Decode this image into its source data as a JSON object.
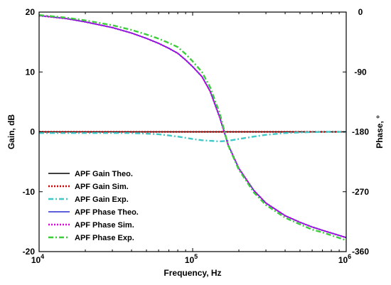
{
  "chart_data": {
    "type": "line",
    "xlabel": "Frequency, Hz",
    "ylabel_left": "Gain, dB",
    "ylabel_right": "Phase, °",
    "x_scale": "log",
    "xlim": [
      10000,
      1000000
    ],
    "ylim_left": [
      -20,
      20
    ],
    "ylim_right": [
      -360,
      0
    ],
    "x_ticks": [
      {
        "value": 10000,
        "base": "10",
        "exp": "4"
      },
      {
        "value": 100000,
        "base": "10",
        "exp": "5"
      },
      {
        "value": 1000000,
        "base": "10",
        "exp": "6"
      }
    ],
    "y_ticks_left": [
      "20",
      "10",
      "0",
      "-10",
      "-20"
    ],
    "y_ticks_right": [
      "0",
      "-90",
      "-180",
      "-270",
      "-360"
    ],
    "grid": false,
    "legend_position": "bottom-left",
    "x": [
      10000,
      15000,
      20000,
      30000,
      40000,
      50000,
      60000,
      70000,
      80000,
      90000,
      100000,
      115000,
      130000,
      150000,
      170000,
      200000,
      250000,
      300000,
      400000,
      500000,
      600000,
      700000,
      1000000
    ],
    "series": [
      {
        "name": "APF Gain Theo.",
        "axis": "left",
        "color": "#000000",
        "dash": "solid",
        "values": [
          0,
          0,
          0,
          0,
          0,
          0,
          0,
          0,
          0,
          0,
          0,
          0,
          0,
          0,
          0,
          0,
          0,
          0,
          0,
          0,
          0,
          0,
          0
        ]
      },
      {
        "name": "APF Gain Sim.",
        "axis": "left",
        "color": "#d40000",
        "dash": "dot",
        "values": [
          0,
          0,
          0,
          0,
          0,
          0,
          0,
          0,
          0,
          0,
          0,
          0,
          0,
          0,
          0,
          0,
          0,
          0,
          0,
          0,
          0,
          0,
          0
        ]
      },
      {
        "name": "APF Gain Exp.",
        "axis": "left",
        "color": "#40c8c8",
        "dash": "dashdot",
        "values": [
          -0.2,
          -0.2,
          -0.2,
          -0.2,
          -0.2,
          -0.3,
          -0.4,
          -0.6,
          -0.8,
          -1.0,
          -1.2,
          -1.4,
          -1.5,
          -1.6,
          -1.5,
          -1.2,
          -0.8,
          -0.5,
          -0.2,
          -0.1,
          -0.05,
          0,
          0
        ]
      },
      {
        "name": "APF Phase Theo.",
        "axis": "right",
        "color": "#2a2ad0",
        "dash": "solid",
        "values": [
          -5.3,
          -9.7,
          -14.7,
          -23.3,
          -31.5,
          -39.5,
          -47,
          -54.5,
          -62,
          -72,
          -82,
          -97,
          -119,
          -158,
          -199,
          -235,
          -268,
          -287,
          -306,
          -316,
          -323,
          -328,
          -339
        ]
      },
      {
        "name": "APF Phase Sim.",
        "axis": "right",
        "color": "#e000e0",
        "dash": "dot",
        "values": [
          -5.3,
          -9.7,
          -14.7,
          -23.3,
          -31.5,
          -39.5,
          -47,
          -54.5,
          -62,
          -72,
          -82,
          -97,
          -119,
          -158,
          -199,
          -235,
          -268,
          -287,
          -306,
          -316,
          -323,
          -328,
          -339
        ]
      },
      {
        "name": "APF Phase Exp.",
        "axis": "right",
        "color": "#3ccc3c",
        "dash": "dashdot",
        "values": [
          -4.5,
          -8.3,
          -12.5,
          -19.8,
          -26.8,
          -33.6,
          -40,
          -46.4,
          -52.7,
          -63,
          -74,
          -90,
          -113,
          -152,
          -200,
          -237,
          -271,
          -290,
          -309,
          -319,
          -327,
          -331,
          -343
        ]
      }
    ]
  }
}
